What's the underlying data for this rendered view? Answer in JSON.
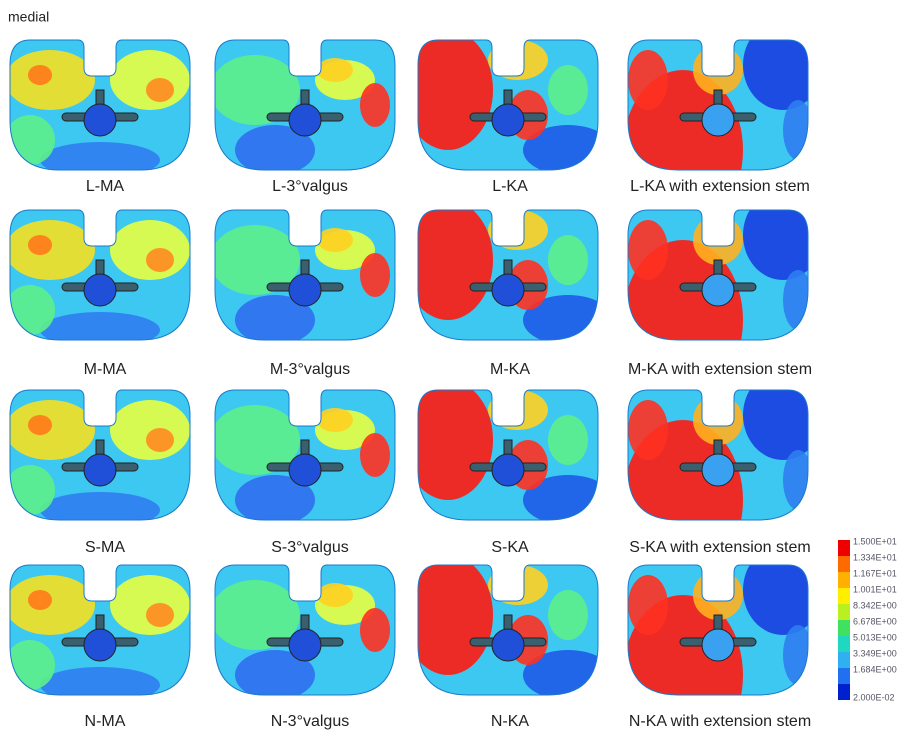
{
  "header": {
    "title": "medial"
  },
  "panels": [
    [
      "L-MA",
      "L-3°valgus",
      "L-KA",
      "L-KA with extension stem"
    ],
    [
      "M-MA",
      "M-3°valgus",
      "M-KA",
      "M-KA with extension stem"
    ],
    [
      "S-MA",
      "S-3°valgus",
      "S-KA",
      "S-KA with extension stem"
    ],
    [
      "N-MA",
      "N-3°valgus",
      "N-KA",
      "N-KA with extension stem"
    ]
  ],
  "legend": {
    "labels": [
      "1.500E+01",
      "1.334E+01",
      "1.167E+01",
      "1.001E+01",
      "8.342E+00",
      "6.678E+00",
      "5.013E+00",
      "3.349E+00",
      "1.684E+00",
      "2.000E-02"
    ]
  }
}
